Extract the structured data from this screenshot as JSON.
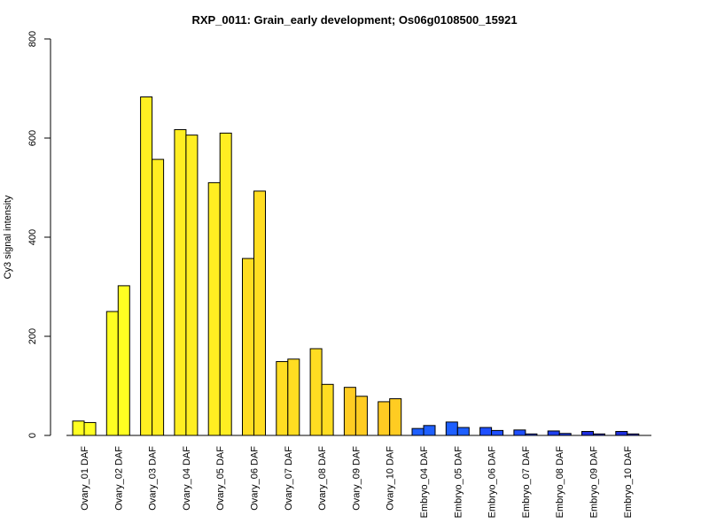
{
  "chart_data": {
    "type": "bar",
    "title": "RXP_0011: Grain_early development; Os06g0108500_15921",
    "xlabel": "",
    "ylabel": "Cy3 signal intensity",
    "ylim": [
      0,
      800
    ],
    "yticks": [
      0,
      200,
      400,
      600,
      800
    ],
    "grid": false,
    "categories": [
      "Ovary_01 DAF",
      "Ovary_02 DAF",
      "Ovary_03 DAF",
      "Ovary_04 DAF",
      "Ovary_05 DAF",
      "Ovary_06 DAF",
      "Ovary_07 DAF",
      "Ovary_08 DAF",
      "Ovary_09 DAF",
      "Ovary_10 DAF",
      "Embryo_04 DAF",
      "Embryo_05 DAF",
      "Embryo_06 DAF",
      "Embryo_07 DAF",
      "Embryo_08 DAF",
      "Embryo_09 DAF",
      "Embryo_10 DAF"
    ],
    "series": [
      {
        "values": [
          29,
          250,
          683,
          617,
          510,
          357,
          149,
          175,
          97,
          68,
          14,
          27,
          16,
          11,
          9,
          8,
          8
        ]
      },
      {
        "values": [
          26,
          302,
          557,
          606,
          610,
          493,
          154,
          103,
          79,
          74,
          20,
          16,
          10,
          3,
          4,
          3,
          3
        ]
      }
    ],
    "colors": [
      "#ffff22",
      "#ffff22",
      "#ffee22",
      "#ffee22",
      "#ffee22",
      "#ffdd22",
      "#ffdd22",
      "#ffdd22",
      "#ffcc22",
      "#ffcc22",
      "#1e5fff",
      "#1e5fff",
      "#1e4fff",
      "#1e4fff",
      "#1e3fef",
      "#1e2fdf",
      "#1e2fdf"
    ]
  }
}
